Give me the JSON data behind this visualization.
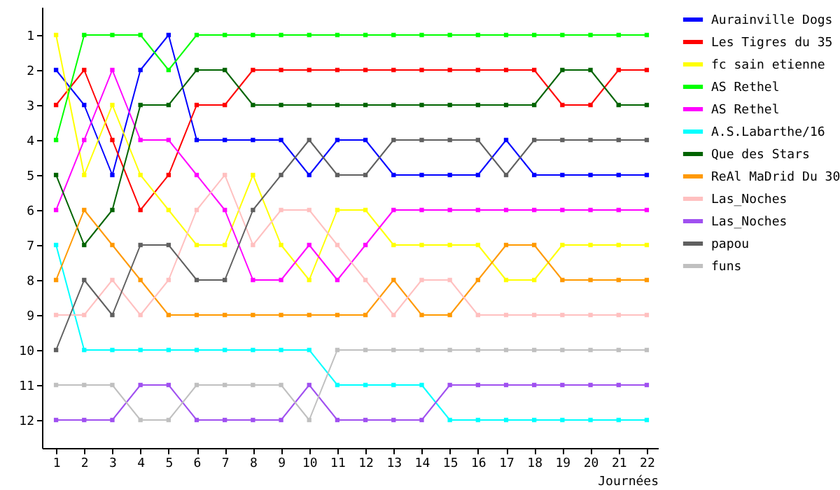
{
  "chart_data": {
    "type": "line",
    "xlabel": "Journées",
    "x": [
      1,
      2,
      3,
      4,
      5,
      6,
      7,
      8,
      9,
      10,
      11,
      12,
      13,
      14,
      15,
      16,
      17,
      18,
      19,
      20,
      21,
      22
    ],
    "xlim": [
      0.5,
      22.4
    ],
    "xticks": [
      1,
      2,
      3,
      4,
      5,
      6,
      7,
      8,
      9,
      10,
      11,
      12,
      13,
      14,
      15,
      16,
      17,
      18,
      19,
      20,
      21,
      22
    ],
    "ylim": [
      12.8,
      0.2
    ],
    "yticks": [
      1,
      2,
      3,
      4,
      5,
      6,
      7,
      8,
      9,
      10,
      11,
      12
    ],
    "grid": false,
    "legend": "right",
    "marker": "square",
    "line_style": "solid",
    "series": [
      {
        "name": "Aurainville Dogs",
        "color": "#0000ff",
        "values": [
          2,
          3,
          5,
          2,
          1,
          4,
          4,
          4,
          4,
          5,
          4,
          4,
          5,
          5,
          5,
          5,
          4,
          5,
          5,
          5,
          5,
          5
        ]
      },
      {
        "name": "Les Tigres du 35",
        "color": "#ff0000",
        "values": [
          3,
          2,
          4,
          6,
          5,
          3,
          3,
          2,
          2,
          2,
          2,
          2,
          2,
          2,
          2,
          2,
          2,
          2,
          3,
          3,
          2,
          2
        ]
      },
      {
        "name": "fc sain etienne",
        "color": "#ffff00",
        "values": [
          1,
          5,
          3,
          5,
          6,
          7,
          7,
          5,
          7,
          8,
          6,
          6,
          7,
          7,
          7,
          7,
          8,
          8,
          7,
          7,
          7,
          7
        ]
      },
      {
        "name": "AS Rethel",
        "color": "#00ff00",
        "values": [
          4,
          1,
          1,
          1,
          2,
          1,
          1,
          1,
          1,
          1,
          1,
          1,
          1,
          1,
          1,
          1,
          1,
          1,
          1,
          1,
          1,
          1
        ]
      },
      {
        "name": "AS Rethel",
        "color": "#ff00ff",
        "values": [
          6,
          4,
          2,
          4,
          4,
          5,
          6,
          8,
          8,
          7,
          8,
          7,
          6,
          6,
          6,
          6,
          6,
          6,
          6,
          6,
          6,
          6
        ]
      },
      {
        "name": "A.S.Labarthe/16",
        "color": "#00ffff",
        "values": [
          7,
          10,
          10,
          10,
          10,
          10,
          10,
          10,
          10,
          10,
          11,
          11,
          11,
          11,
          12,
          12,
          12,
          12,
          12,
          12,
          12,
          12
        ]
      },
      {
        "name": "Que des Stars",
        "color": "#006400",
        "values": [
          5,
          7,
          6,
          3,
          3,
          2,
          2,
          3,
          3,
          3,
          3,
          3,
          3,
          3,
          3,
          3,
          3,
          3,
          2,
          2,
          3,
          3
        ]
      },
      {
        "name": "ReAl MaDrid Du 30",
        "color": "#ff9900",
        "values": [
          8,
          6,
          7,
          8,
          9,
          9,
          9,
          9,
          9,
          9,
          9,
          9,
          8,
          9,
          9,
          8,
          7,
          7,
          8,
          8,
          8,
          8
        ]
      },
      {
        "name": "Las_Noches",
        "color": "#ffc0c0",
        "values": [
          9,
          9,
          8,
          9,
          8,
          6,
          5,
          7,
          6,
          6,
          7,
          8,
          9,
          8,
          8,
          9,
          9,
          9,
          9,
          9,
          9,
          9
        ]
      },
      {
        "name": "Las_Noches",
        "color": "#a050f0",
        "values": [
          12,
          12,
          12,
          11,
          11,
          12,
          12,
          12,
          12,
          11,
          12,
          12,
          12,
          12,
          11,
          11,
          11,
          11,
          11,
          11,
          11,
          11
        ]
      },
      {
        "name": "papou",
        "color": "#606060",
        "values": [
          10,
          8,
          9,
          7,
          7,
          8,
          8,
          6,
          5,
          4,
          5,
          5,
          4,
          4,
          4,
          4,
          5,
          4,
          4,
          4,
          4,
          4
        ]
      },
      {
        "name": "funs",
        "color": "#c0c0c0",
        "values": [
          11,
          11,
          11,
          12,
          12,
          11,
          11,
          11,
          11,
          12,
          10,
          10,
          10,
          10,
          10,
          10,
          10,
          10,
          10,
          10,
          10,
          10
        ]
      }
    ]
  }
}
